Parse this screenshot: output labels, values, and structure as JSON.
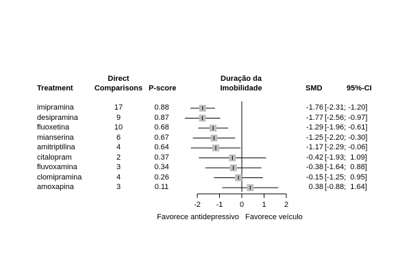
{
  "headers": {
    "treatment": "Treatment",
    "direct_line1": "Direct",
    "direct_line2": "Comparisons",
    "pscore": "P-score",
    "outcome_line1": "Duração da",
    "outcome_line2": "Imobilidade",
    "smd": "SMD",
    "ci": "95%-CI"
  },
  "chart_data": {
    "type": "forest",
    "xlim": [
      -2,
      2
    ],
    "xticks": [
      -2,
      -1,
      0,
      1,
      2
    ],
    "reference_line": 0,
    "xlabel_left": "Favorece antidepressivo",
    "xlabel_right": "Favorece veículo",
    "rows": [
      {
        "treatment": "imipramina",
        "comparisons": "17",
        "pscore": "0.88",
        "smd": -1.76,
        "lower": -2.31,
        "upper": -1.2,
        "smd_text": "-1.76",
        "ci_text": "[-2.31; -1.20]"
      },
      {
        "treatment": "desipramina",
        "comparisons": "9",
        "pscore": "0.87",
        "smd": -1.77,
        "lower": -2.56,
        "upper": -0.97,
        "smd_text": "-1.77",
        "ci_text": "[-2.56; -0.97]"
      },
      {
        "treatment": "fluoxetina",
        "comparisons": "10",
        "pscore": "0.68",
        "smd": -1.29,
        "lower": -1.96,
        "upper": -0.61,
        "smd_text": "-1.29",
        "ci_text": "[-1.96; -0.61]"
      },
      {
        "treatment": "mianserina",
        "comparisons": "6",
        "pscore": "0.67",
        "smd": -1.25,
        "lower": -2.2,
        "upper": -0.3,
        "smd_text": "-1.25",
        "ci_text": "[-2.20; -0.30]"
      },
      {
        "treatment": "amitriptilina",
        "comparisons": "4",
        "pscore": "0.64",
        "smd": -1.17,
        "lower": -2.29,
        "upper": -0.06,
        "smd_text": "-1.17",
        "ci_text": "[-2.29; -0.06]"
      },
      {
        "treatment": "citalopram",
        "comparisons": "2",
        "pscore": "0.37",
        "smd": -0.42,
        "lower": -1.93,
        "upper": 1.09,
        "smd_text": "-0.42",
        "ci_text": "[-1.93;  1.09]"
      },
      {
        "treatment": "fluvoxamina",
        "comparisons": "3",
        "pscore": "0.34",
        "smd": -0.38,
        "lower": -1.64,
        "upper": 0.88,
        "smd_text": "-0.38",
        "ci_text": "[-1.64;  0.88]"
      },
      {
        "treatment": "clomipramina",
        "comparisons": "4",
        "pscore": "0.26",
        "smd": -0.15,
        "lower": -1.25,
        "upper": 0.95,
        "smd_text": "-0.15",
        "ci_text": "[-1.25;  0.95]"
      },
      {
        "treatment": "amoxapina",
        "comparisons": "3",
        "pscore": "0.11",
        "smd": 0.38,
        "lower": -0.88,
        "upper": 1.64,
        "smd_text": "0.38",
        "ci_text": "[-0.88;  1.64]"
      }
    ]
  }
}
